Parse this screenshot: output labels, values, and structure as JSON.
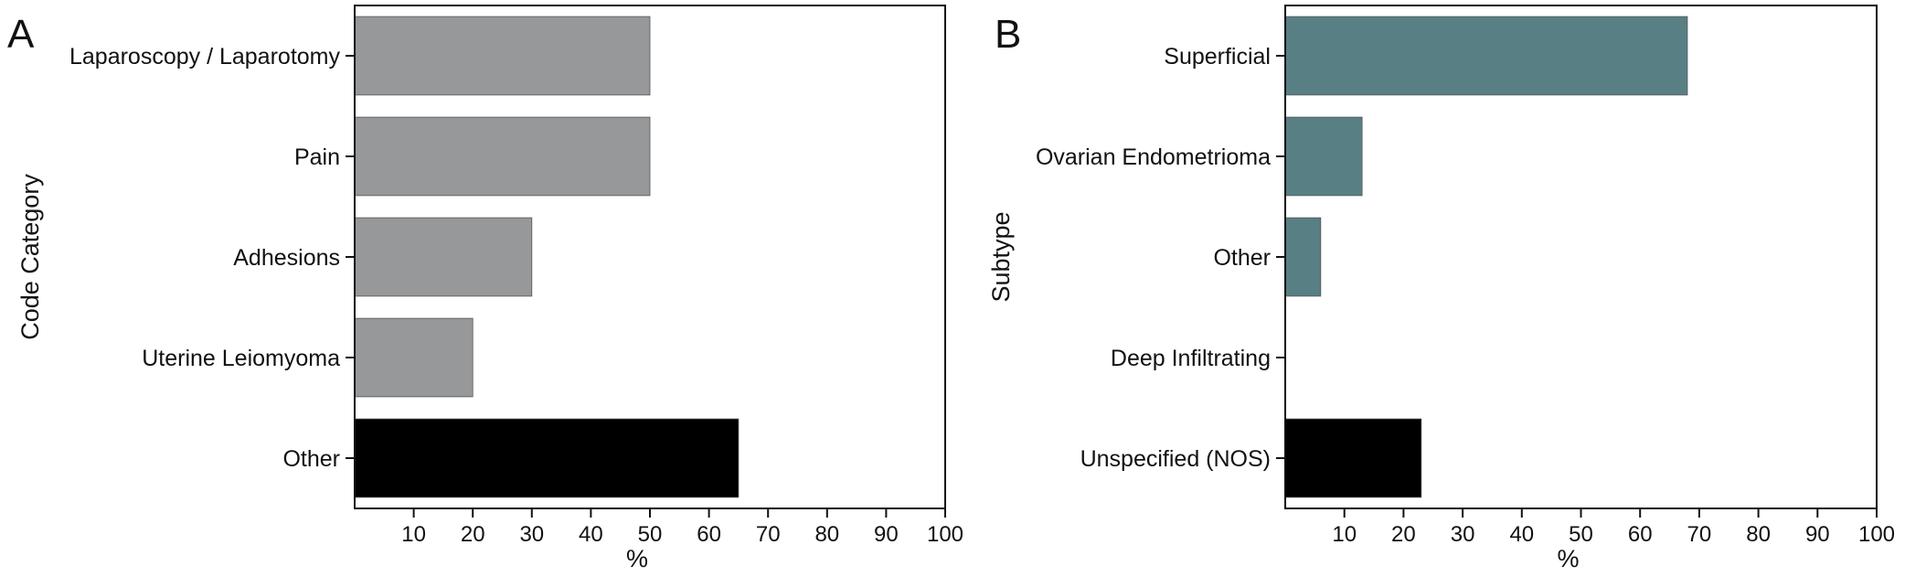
{
  "chart_data": [
    {
      "panel": "A",
      "type": "bar",
      "orientation": "horizontal",
      "ylabel": "Code Category",
      "xlabel": "%",
      "xlim": [
        0,
        100
      ],
      "xticks": [
        "10",
        "20",
        "30",
        "40",
        "50",
        "60",
        "70",
        "80",
        "90",
        "100"
      ],
      "categories": [
        "Laparoscopy / Laparotomy",
        "Pain",
        "Adhesions",
        "Uterine Leiomyoma",
        "Other"
      ],
      "values": [
        50,
        50,
        30,
        20,
        65
      ],
      "colors": [
        "#97989a",
        "#97989a",
        "#97989a",
        "#97989a",
        "#000000"
      ],
      "grid": false
    },
    {
      "panel": "B",
      "type": "bar",
      "orientation": "horizontal",
      "ylabel": "Subtype",
      "xlabel": "%",
      "xlim": [
        0,
        100
      ],
      "xticks": [
        "10",
        "20",
        "30",
        "40",
        "50",
        "60",
        "70",
        "80",
        "90",
        "100"
      ],
      "categories": [
        "Superficial",
        "Ovarian Endometrioma",
        "Other",
        "Deep Infiltrating",
        "Unspecified (NOS)"
      ],
      "values": [
        68,
        13,
        6,
        0,
        23
      ],
      "colors": [
        "#587f84",
        "#587f84",
        "#587f84",
        "#587f84",
        "#000000"
      ],
      "grid": false
    }
  ]
}
